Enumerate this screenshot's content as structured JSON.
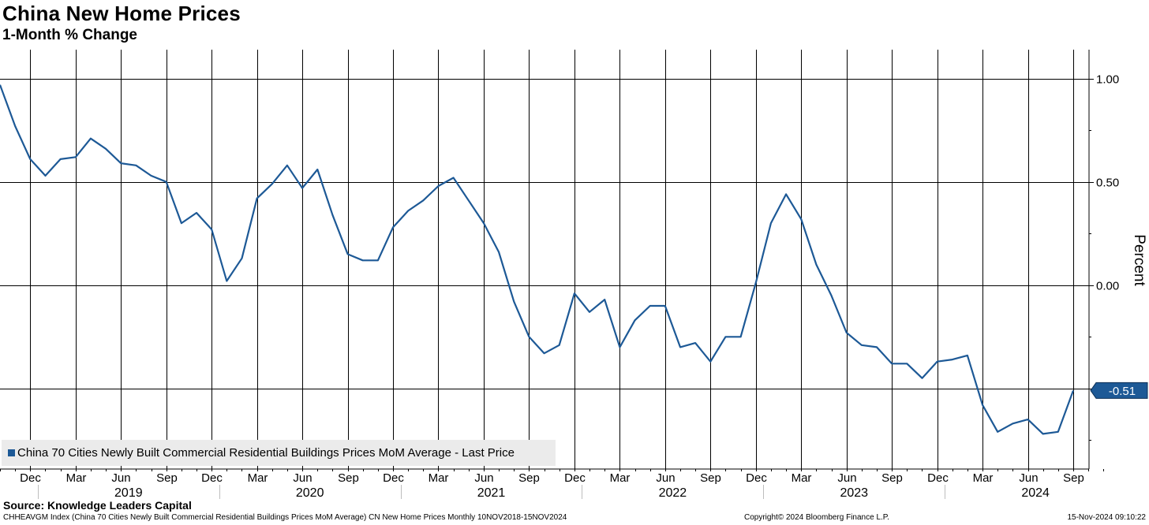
{
  "header": {
    "title": "China New Home Prices",
    "subtitle": "1-Month % Change"
  },
  "source": "Source: Knowledge Leaders Capital",
  "footer": {
    "index_description": "CHHEAVGM Index (China 70 Cities Newly Built Commercial Residential Buildings Prices MoM Average) CN New Home Prices  Monthly 10NOV2018-15NOV2024",
    "copyright": "Copyright© 2024 Bloomberg Finance L.P.",
    "timestamp": "15-Nov-2024 09:10:22"
  },
  "legend": {
    "entry": "China 70 Cities Newly Built Commercial Residential Buildings Prices MoM Average - Last Price"
  },
  "last_value_label": "-0.51",
  "colors": {
    "series": "#1d5996",
    "grid": "#000000",
    "legend_bg": "#ebebeb"
  },
  "chart_data": {
    "type": "line",
    "title": "China New Home Prices",
    "subtitle": "1-Month % Change",
    "ylabel": "Percent",
    "ylim": [
      -0.89,
      1.14
    ],
    "yticks": [
      {
        "value": 1.0,
        "label": "1.00"
      },
      {
        "value": 0.5,
        "label": "0.50"
      },
      {
        "value": 0.0,
        "label": "0.00"
      }
    ],
    "grid": true,
    "y_axis_side": "right",
    "legend_position": "bottom-left",
    "x_start": "2018-10",
    "x_end": "2024-11",
    "x_month_labels": [
      {
        "label": "Dec",
        "date": "2018-12"
      },
      {
        "label": "Mar",
        "date": "2019-03"
      },
      {
        "label": "Jun",
        "date": "2019-06"
      },
      {
        "label": "Sep",
        "date": "2019-09"
      },
      {
        "label": "Dec",
        "date": "2019-12"
      },
      {
        "label": "Mar",
        "date": "2020-03"
      },
      {
        "label": "Jun",
        "date": "2020-06"
      },
      {
        "label": "Sep",
        "date": "2020-09"
      },
      {
        "label": "Dec",
        "date": "2020-12"
      },
      {
        "label": "Mar",
        "date": "2021-03"
      },
      {
        "label": "Jun",
        "date": "2021-06"
      },
      {
        "label": "Sep",
        "date": "2021-09"
      },
      {
        "label": "Dec",
        "date": "2021-12"
      },
      {
        "label": "Mar",
        "date": "2022-03"
      },
      {
        "label": "Jun",
        "date": "2022-06"
      },
      {
        "label": "Sep",
        "date": "2022-09"
      },
      {
        "label": "Dec",
        "date": "2022-12"
      },
      {
        "label": "Mar",
        "date": "2023-03"
      },
      {
        "label": "Jun",
        "date": "2023-06"
      },
      {
        "label": "Sep",
        "date": "2023-09"
      },
      {
        "label": "Dec",
        "date": "2023-12"
      },
      {
        "label": "Mar",
        "date": "2024-03"
      },
      {
        "label": "Jun",
        "date": "2024-06"
      },
      {
        "label": "Sep",
        "date": "2024-09"
      }
    ],
    "x_year_labels": [
      "2019",
      "2020",
      "2021",
      "2022",
      "2023",
      "2024"
    ],
    "series": [
      {
        "name": "China 70 Cities Newly Built Commercial Residential Buildings Prices MoM Average - Last Price",
        "points": [
          {
            "date": "2018-10",
            "value": 0.97
          },
          {
            "date": "2018-11",
            "value": 0.77
          },
          {
            "date": "2018-12",
            "value": 0.61
          },
          {
            "date": "2019-01",
            "value": 0.53
          },
          {
            "date": "2019-02",
            "value": 0.61
          },
          {
            "date": "2019-03",
            "value": 0.62
          },
          {
            "date": "2019-04",
            "value": 0.71
          },
          {
            "date": "2019-05",
            "value": 0.66
          },
          {
            "date": "2019-06",
            "value": 0.59
          },
          {
            "date": "2019-07",
            "value": 0.58
          },
          {
            "date": "2019-08",
            "value": 0.53
          },
          {
            "date": "2019-09",
            "value": 0.5
          },
          {
            "date": "2019-10",
            "value": 0.3
          },
          {
            "date": "2019-11",
            "value": 0.35
          },
          {
            "date": "2019-12",
            "value": 0.27
          },
          {
            "date": "2020-01",
            "value": 0.02
          },
          {
            "date": "2020-02",
            "value": 0.13
          },
          {
            "date": "2020-03",
            "value": 0.42
          },
          {
            "date": "2020-04",
            "value": 0.49
          },
          {
            "date": "2020-05",
            "value": 0.58
          },
          {
            "date": "2020-06",
            "value": 0.47
          },
          {
            "date": "2020-07",
            "value": 0.56
          },
          {
            "date": "2020-08",
            "value": 0.34
          },
          {
            "date": "2020-09",
            "value": 0.15
          },
          {
            "date": "2020-10",
            "value": 0.12
          },
          {
            "date": "2020-11",
            "value": 0.12
          },
          {
            "date": "2020-12",
            "value": 0.28
          },
          {
            "date": "2021-01",
            "value": 0.36
          },
          {
            "date": "2021-02",
            "value": 0.41
          },
          {
            "date": "2021-03",
            "value": 0.48
          },
          {
            "date": "2021-04",
            "value": 0.52
          },
          {
            "date": "2021-05",
            "value": 0.41
          },
          {
            "date": "2021-06",
            "value": 0.3
          },
          {
            "date": "2021-07",
            "value": 0.16
          },
          {
            "date": "2021-08",
            "value": -0.08
          },
          {
            "date": "2021-09",
            "value": -0.25
          },
          {
            "date": "2021-10",
            "value": -0.33
          },
          {
            "date": "2021-11",
            "value": -0.29
          },
          {
            "date": "2021-12",
            "value": -0.04
          },
          {
            "date": "2022-01",
            "value": -0.13
          },
          {
            "date": "2022-02",
            "value": -0.07
          },
          {
            "date": "2022-03",
            "value": -0.3
          },
          {
            "date": "2022-04",
            "value": -0.17
          },
          {
            "date": "2022-05",
            "value": -0.1
          },
          {
            "date": "2022-06",
            "value": -0.1
          },
          {
            "date": "2022-07",
            "value": -0.3
          },
          {
            "date": "2022-08",
            "value": -0.28
          },
          {
            "date": "2022-09",
            "value": -0.37
          },
          {
            "date": "2022-10",
            "value": -0.25
          },
          {
            "date": "2022-11",
            "value": -0.25
          },
          {
            "date": "2022-12",
            "value": 0.01
          },
          {
            "date": "2023-01",
            "value": 0.3
          },
          {
            "date": "2023-02",
            "value": 0.44
          },
          {
            "date": "2023-03",
            "value": 0.32
          },
          {
            "date": "2023-04",
            "value": 0.1
          },
          {
            "date": "2023-05",
            "value": -0.05
          },
          {
            "date": "2023-06",
            "value": -0.23
          },
          {
            "date": "2023-07",
            "value": -0.29
          },
          {
            "date": "2023-08",
            "value": -0.3
          },
          {
            "date": "2023-09",
            "value": -0.38
          },
          {
            "date": "2023-10",
            "value": -0.38
          },
          {
            "date": "2023-11",
            "value": -0.45
          },
          {
            "date": "2023-12",
            "value": -0.37
          },
          {
            "date": "2024-01",
            "value": -0.36
          },
          {
            "date": "2024-02",
            "value": -0.34
          },
          {
            "date": "2024-03",
            "value": -0.58
          },
          {
            "date": "2024-04",
            "value": -0.71
          },
          {
            "date": "2024-05",
            "value": -0.67
          },
          {
            "date": "2024-06",
            "value": -0.65
          },
          {
            "date": "2024-07",
            "value": -0.72
          },
          {
            "date": "2024-08",
            "value": -0.71
          },
          {
            "date": "2024-09",
            "value": -0.51
          }
        ]
      }
    ]
  }
}
